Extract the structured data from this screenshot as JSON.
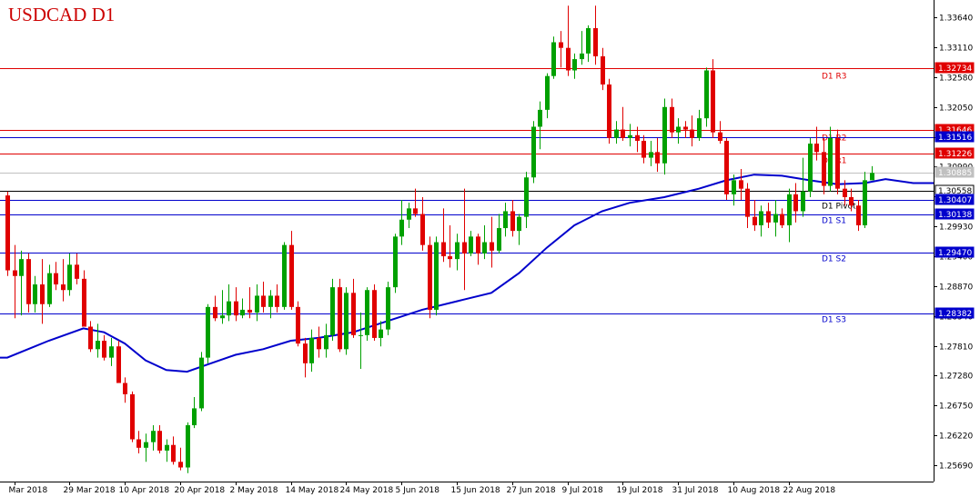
{
  "chart_data": {
    "type": "candlestick",
    "title": "USDCAD D1",
    "ylim": [
      1.254,
      1.3395
    ],
    "y_ticks": [
      1.3364,
      1.3311,
      1.3258,
      1.3205,
      1.3152,
      1.3099,
      1.3046,
      1.2993,
      1.294,
      1.2887,
      1.2834,
      1.2781,
      1.2728,
      1.2675,
      1.2622,
      1.2569
    ],
    "x_tick_labels": [
      "Mar 2018",
      "29 Mar 2018",
      "10 Apr 2018",
      "20 Apr 2018",
      "2 May 2018",
      "14 May 2018",
      "24 May 2018",
      "5 Jun 2018",
      "15 Jun 2018",
      "27 Jun 2018",
      "9 Jul 2018",
      "19 Jul 2018",
      "31 Jul 2018",
      "10 Aug 2018",
      "22 Aug 2018"
    ],
    "x_tick_index": [
      1,
      9,
      17,
      25,
      33,
      41,
      49,
      57,
      65,
      73,
      81,
      89,
      97,
      105,
      113
    ],
    "colors": {
      "bull": "#00a000",
      "bear": "#e00000",
      "ma": "#0000cc",
      "resistance": "#e00000",
      "support": "#0000cc",
      "current": "#000000",
      "bid": "#c0c0c0"
    },
    "candles": [
      {
        "o": 1.3048,
        "h": 1.3055,
        "l": 1.2905,
        "c": 1.2915
      },
      {
        "o": 1.2915,
        "h": 1.296,
        "l": 1.283,
        "c": 1.2905
      },
      {
        "o": 1.2905,
        "h": 1.295,
        "l": 1.2835,
        "c": 1.2935
      },
      {
        "o": 1.2935,
        "h": 1.2945,
        "l": 1.284,
        "c": 1.2855
      },
      {
        "o": 1.2855,
        "h": 1.2905,
        "l": 1.284,
        "c": 1.289
      },
      {
        "o": 1.289,
        "h": 1.2935,
        "l": 1.282,
        "c": 1.2855
      },
      {
        "o": 1.2855,
        "h": 1.2925,
        "l": 1.285,
        "c": 1.291
      },
      {
        "o": 1.291,
        "h": 1.293,
        "l": 1.288,
        "c": 1.289
      },
      {
        "o": 1.289,
        "h": 1.2935,
        "l": 1.286,
        "c": 1.288
      },
      {
        "o": 1.288,
        "h": 1.2945,
        "l": 1.287,
        "c": 1.2925
      },
      {
        "o": 1.2925,
        "h": 1.2945,
        "l": 1.289,
        "c": 1.29
      },
      {
        "o": 1.29,
        "h": 1.2915,
        "l": 1.2815,
        "c": 1.2815
      },
      {
        "o": 1.2815,
        "h": 1.2825,
        "l": 1.277,
        "c": 1.2775
      },
      {
        "o": 1.2775,
        "h": 1.282,
        "l": 1.276,
        "c": 1.279
      },
      {
        "o": 1.279,
        "h": 1.28,
        "l": 1.2755,
        "c": 1.276
      },
      {
        "o": 1.276,
        "h": 1.2795,
        "l": 1.2745,
        "c": 1.278
      },
      {
        "o": 1.278,
        "h": 1.279,
        "l": 1.2715,
        "c": 1.2715
      },
      {
        "o": 1.2715,
        "h": 1.2725,
        "l": 1.268,
        "c": 1.2695
      },
      {
        "o": 1.2695,
        "h": 1.27,
        "l": 1.261,
        "c": 1.2615
      },
      {
        "o": 1.2615,
        "h": 1.263,
        "l": 1.259,
        "c": 1.26
      },
      {
        "o": 1.26,
        "h": 1.2625,
        "l": 1.2575,
        "c": 1.261
      },
      {
        "o": 1.261,
        "h": 1.264,
        "l": 1.2595,
        "c": 1.263
      },
      {
        "o": 1.263,
        "h": 1.264,
        "l": 1.259,
        "c": 1.2595
      },
      {
        "o": 1.2595,
        "h": 1.2615,
        "l": 1.2575,
        "c": 1.2605
      },
      {
        "o": 1.2605,
        "h": 1.262,
        "l": 1.257,
        "c": 1.2575
      },
      {
        "o": 1.2575,
        "h": 1.26,
        "l": 1.256,
        "c": 1.2565
      },
      {
        "o": 1.2565,
        "h": 1.2645,
        "l": 1.2555,
        "c": 1.264
      },
      {
        "o": 1.264,
        "h": 1.269,
        "l": 1.2635,
        "c": 1.267
      },
      {
        "o": 1.267,
        "h": 1.277,
        "l": 1.2665,
        "c": 1.276
      },
      {
        "o": 1.276,
        "h": 1.2855,
        "l": 1.275,
        "c": 1.285
      },
      {
        "o": 1.285,
        "h": 1.287,
        "l": 1.2825,
        "c": 1.283
      },
      {
        "o": 1.283,
        "h": 1.288,
        "l": 1.282,
        "c": 1.2835
      },
      {
        "o": 1.2835,
        "h": 1.289,
        "l": 1.2825,
        "c": 1.286
      },
      {
        "o": 1.286,
        "h": 1.2885,
        "l": 1.2825,
        "c": 1.2835
      },
      {
        "o": 1.2835,
        "h": 1.2865,
        "l": 1.283,
        "c": 1.2845
      },
      {
        "o": 1.2845,
        "h": 1.2885,
        "l": 1.283,
        "c": 1.284
      },
      {
        "o": 1.284,
        "h": 1.289,
        "l": 1.2825,
        "c": 1.287
      },
      {
        "o": 1.287,
        "h": 1.2895,
        "l": 1.284,
        "c": 1.285
      },
      {
        "o": 1.285,
        "h": 1.288,
        "l": 1.283,
        "c": 1.287
      },
      {
        "o": 1.287,
        "h": 1.289,
        "l": 1.284,
        "c": 1.285
      },
      {
        "o": 1.285,
        "h": 1.2965,
        "l": 1.2845,
        "c": 1.296
      },
      {
        "o": 1.296,
        "h": 1.2985,
        "l": 1.2845,
        "c": 1.285
      },
      {
        "o": 1.285,
        "h": 1.286,
        "l": 1.278,
        "c": 1.2785
      },
      {
        "o": 1.2785,
        "h": 1.2795,
        "l": 1.2725,
        "c": 1.275
      },
      {
        "o": 1.275,
        "h": 1.281,
        "l": 1.2735,
        "c": 1.2795
      },
      {
        "o": 1.2795,
        "h": 1.2815,
        "l": 1.276,
        "c": 1.2775
      },
      {
        "o": 1.2775,
        "h": 1.282,
        "l": 1.276,
        "c": 1.28
      },
      {
        "o": 1.28,
        "h": 1.29,
        "l": 1.279,
        "c": 1.2885
      },
      {
        "o": 1.2885,
        "h": 1.29,
        "l": 1.277,
        "c": 1.2775
      },
      {
        "o": 1.2775,
        "h": 1.2885,
        "l": 1.2765,
        "c": 1.2875
      },
      {
        "o": 1.2875,
        "h": 1.29,
        "l": 1.2795,
        "c": 1.28
      },
      {
        "o": 1.28,
        "h": 1.284,
        "l": 1.274,
        "c": 1.28
      },
      {
        "o": 1.28,
        "h": 1.2885,
        "l": 1.279,
        "c": 1.288
      },
      {
        "o": 1.288,
        "h": 1.289,
        "l": 1.279,
        "c": 1.2795
      },
      {
        "o": 1.2795,
        "h": 1.2825,
        "l": 1.278,
        "c": 1.281
      },
      {
        "o": 1.281,
        "h": 1.2895,
        "l": 1.28,
        "c": 1.2885
      },
      {
        "o": 1.2885,
        "h": 1.298,
        "l": 1.2875,
        "c": 1.2975
      },
      {
        "o": 1.2975,
        "h": 1.304,
        "l": 1.296,
        "c": 1.3005
      },
      {
        "o": 1.3005,
        "h": 1.3035,
        "l": 1.299,
        "c": 1.3025
      },
      {
        "o": 1.3025,
        "h": 1.306,
        "l": 1.301,
        "c": 1.3015
      },
      {
        "o": 1.3015,
        "h": 1.3045,
        "l": 1.295,
        "c": 1.296
      },
      {
        "o": 1.296,
        "h": 1.2975,
        "l": 1.283,
        "c": 1.2845
      },
      {
        "o": 1.2845,
        "h": 1.2975,
        "l": 1.2835,
        "c": 1.2965
      },
      {
        "o": 1.2965,
        "h": 1.3025,
        "l": 1.293,
        "c": 1.294
      },
      {
        "o": 1.294,
        "h": 1.2995,
        "l": 1.292,
        "c": 1.2935
      },
      {
        "o": 1.2935,
        "h": 1.298,
        "l": 1.2915,
        "c": 1.2965
      },
      {
        "o": 1.2965,
        "h": 1.306,
        "l": 1.288,
        "c": 1.2945
      },
      {
        "o": 1.2945,
        "h": 1.2985,
        "l": 1.294,
        "c": 1.2975
      },
      {
        "o": 1.2975,
        "h": 1.298,
        "l": 1.2925,
        "c": 1.2945
      },
      {
        "o": 1.2945,
        "h": 1.2995,
        "l": 1.2935,
        "c": 1.2965
      },
      {
        "o": 1.2965,
        "h": 1.301,
        "l": 1.292,
        "c": 1.295
      },
      {
        "o": 1.295,
        "h": 1.3015,
        "l": 1.2945,
        "c": 1.299
      },
      {
        "o": 1.299,
        "h": 1.3035,
        "l": 1.2975,
        "c": 1.302
      },
      {
        "o": 1.302,
        "h": 1.304,
        "l": 1.2975,
        "c": 1.2985
      },
      {
        "o": 1.2985,
        "h": 1.3015,
        "l": 1.296,
        "c": 1.301
      },
      {
        "o": 1.301,
        "h": 1.309,
        "l": 1.299,
        "c": 1.308
      },
      {
        "o": 1.308,
        "h": 1.318,
        "l": 1.307,
        "c": 1.317
      },
      {
        "o": 1.317,
        "h": 1.3215,
        "l": 1.313,
        "c": 1.32
      },
      {
        "o": 1.32,
        "h": 1.3265,
        "l": 1.3185,
        "c": 1.326
      },
      {
        "o": 1.326,
        "h": 1.333,
        "l": 1.3255,
        "c": 1.332
      },
      {
        "o": 1.332,
        "h": 1.334,
        "l": 1.3275,
        "c": 1.331
      },
      {
        "o": 1.331,
        "h": 1.3385,
        "l": 1.326,
        "c": 1.327
      },
      {
        "o": 1.327,
        "h": 1.33,
        "l": 1.3255,
        "c": 1.329
      },
      {
        "o": 1.329,
        "h": 1.334,
        "l": 1.328,
        "c": 1.33
      },
      {
        "o": 1.33,
        "h": 1.335,
        "l": 1.3285,
        "c": 1.3345
      },
      {
        "o": 1.3345,
        "h": 1.3385,
        "l": 1.328,
        "c": 1.3295
      },
      {
        "o": 1.3295,
        "h": 1.331,
        "l": 1.3235,
        "c": 1.3245
      },
      {
        "o": 1.3245,
        "h": 1.3255,
        "l": 1.314,
        "c": 1.315
      },
      {
        "o": 1.315,
        "h": 1.318,
        "l": 1.314,
        "c": 1.3165
      },
      {
        "o": 1.3165,
        "h": 1.3205,
        "l": 1.3145,
        "c": 1.315
      },
      {
        "o": 1.315,
        "h": 1.3175,
        "l": 1.3135,
        "c": 1.3155
      },
      {
        "o": 1.3155,
        "h": 1.317,
        "l": 1.3125,
        "c": 1.3145
      },
      {
        "o": 1.3145,
        "h": 1.3155,
        "l": 1.3105,
        "c": 1.3115
      },
      {
        "o": 1.3115,
        "h": 1.3145,
        "l": 1.31,
        "c": 1.3125
      },
      {
        "o": 1.3125,
        "h": 1.315,
        "l": 1.309,
        "c": 1.3105
      },
      {
        "o": 1.3105,
        "h": 1.322,
        "l": 1.3085,
        "c": 1.3205
      },
      {
        "o": 1.3205,
        "h": 1.322,
        "l": 1.315,
        "c": 1.316
      },
      {
        "o": 1.316,
        "h": 1.3185,
        "l": 1.314,
        "c": 1.317
      },
      {
        "o": 1.317,
        "h": 1.318,
        "l": 1.315,
        "c": 1.3165
      },
      {
        "o": 1.3165,
        "h": 1.319,
        "l": 1.3135,
        "c": 1.315
      },
      {
        "o": 1.315,
        "h": 1.32,
        "l": 1.3145,
        "c": 1.3185
      },
      {
        "o": 1.3185,
        "h": 1.3275,
        "l": 1.317,
        "c": 1.327
      },
      {
        "o": 1.327,
        "h": 1.329,
        "l": 1.315,
        "c": 1.316
      },
      {
        "o": 1.316,
        "h": 1.318,
        "l": 1.314,
        "c": 1.3145
      },
      {
        "o": 1.3145,
        "h": 1.315,
        "l": 1.304,
        "c": 1.305
      },
      {
        "o": 1.305,
        "h": 1.3085,
        "l": 1.303,
        "c": 1.3075
      },
      {
        "o": 1.3075,
        "h": 1.3095,
        "l": 1.304,
        "c": 1.306
      },
      {
        "o": 1.306,
        "h": 1.307,
        "l": 1.299,
        "c": 1.301
      },
      {
        "o": 1.301,
        "h": 1.304,
        "l": 1.2985,
        "c": 1.2995
      },
      {
        "o": 1.2995,
        "h": 1.303,
        "l": 1.2975,
        "c": 1.302
      },
      {
        "o": 1.302,
        "h": 1.3035,
        "l": 1.299,
        "c": 1.3
      },
      {
        "o": 1.3,
        "h": 1.304,
        "l": 1.2975,
        "c": 1.3015
      },
      {
        "o": 1.3015,
        "h": 1.3025,
        "l": 1.299,
        "c": 1.2995
      },
      {
        "o": 1.2995,
        "h": 1.306,
        "l": 1.2965,
        "c": 1.305
      },
      {
        "o": 1.305,
        "h": 1.307,
        "l": 1.3,
        "c": 1.302
      },
      {
        "o": 1.302,
        "h": 1.3115,
        "l": 1.301,
        "c": 1.3055
      },
      {
        "o": 1.3055,
        "h": 1.315,
        "l": 1.3045,
        "c": 1.314
      },
      {
        "o": 1.314,
        "h": 1.317,
        "l": 1.311,
        "c": 1.3125
      },
      {
        "o": 1.3125,
        "h": 1.315,
        "l": 1.305,
        "c": 1.3065
      },
      {
        "o": 1.3065,
        "h": 1.317,
        "l": 1.3055,
        "c": 1.315
      },
      {
        "o": 1.315,
        "h": 1.3165,
        "l": 1.305,
        "c": 1.306
      },
      {
        "o": 1.306,
        "h": 1.3075,
        "l": 1.303,
        "c": 1.3045
      },
      {
        "o": 1.3045,
        "h": 1.306,
        "l": 1.302,
        "c": 1.303
      },
      {
        "o": 1.303,
        "h": 1.304,
        "l": 1.2985,
        "c": 1.2995
      },
      {
        "o": 1.2995,
        "h": 1.309,
        "l": 1.299,
        "c": 1.3075
      },
      {
        "o": 1.3075,
        "h": 1.31,
        "l": 1.3075,
        "c": 1.3088
      }
    ],
    "moving_average": {
      "start": 1.276,
      "points": [
        [
          0,
          1.276
        ],
        [
          6,
          1.279
        ],
        [
          11,
          1.2812
        ],
        [
          14,
          1.2805
        ],
        [
          17,
          1.2785
        ],
        [
          20,
          1.2755
        ],
        [
          23,
          1.2738
        ],
        [
          26,
          1.2735
        ],
        [
          29,
          1.2748
        ],
        [
          33,
          1.2765
        ],
        [
          37,
          1.2775
        ],
        [
          41,
          1.279
        ],
        [
          45,
          1.2795
        ],
        [
          50,
          1.2805
        ],
        [
          55,
          1.2825
        ],
        [
          60,
          1.2845
        ],
        [
          65,
          1.286
        ],
        [
          70,
          1.2875
        ],
        [
          74,
          1.291
        ],
        [
          78,
          1.2955
        ],
        [
          82,
          1.2995
        ],
        [
          86,
          1.302
        ],
        [
          90,
          1.3035
        ],
        [
          95,
          1.3045
        ],
        [
          100,
          1.306
        ],
        [
          104,
          1.3075
        ],
        [
          108,
          1.3085
        ],
        [
          112,
          1.3083
        ],
        [
          116,
          1.3075
        ],
        [
          120,
          1.3068
        ],
        [
          124,
          1.307
        ],
        [
          127,
          1.3077
        ],
        [
          131,
          1.307
        ],
        [
          134,
          1.307
        ]
      ]
    },
    "levels": [
      {
        "name": "D1 R3",
        "value": 1.32734,
        "badge": "1.32734",
        "kind": "resistance",
        "label_offset": 0
      },
      {
        "name": "D1 R2",
        "value": 1.31646,
        "badge": "1.31646",
        "kind": "resistance",
        "label_offset": 0
      },
      {
        "name": "",
        "value": 1.31516,
        "badge": "1.31516",
        "kind": "support",
        "label_offset": 0
      },
      {
        "name": "D1 R1",
        "value": 1.31226,
        "badge": "1.31226",
        "kind": "resistance",
        "label_offset": -1
      },
      {
        "name": "",
        "value": 1.30885,
        "badge": "1.30885",
        "kind": "bid",
        "label_offset": 0
      },
      {
        "name": "",
        "value": 1.30558,
        "badge": "1.30558",
        "kind": "current",
        "label_offset": 0
      },
      {
        "name": "D1 Pivot",
        "value": 1.30407,
        "badge": "1.30407",
        "kind": "support",
        "label_offset": -2
      },
      {
        "name": "D1 S1",
        "value": 1.30138,
        "badge": "1.30138",
        "kind": "support",
        "label_offset": -2
      },
      {
        "name": "D1 S2",
        "value": 1.2947,
        "badge": "1.29470",
        "kind": "support",
        "label_offset": -2
      },
      {
        "name": "D1 S3",
        "value": 1.28382,
        "badge": "1.28382",
        "kind": "support",
        "label_offset": -2
      }
    ]
  }
}
